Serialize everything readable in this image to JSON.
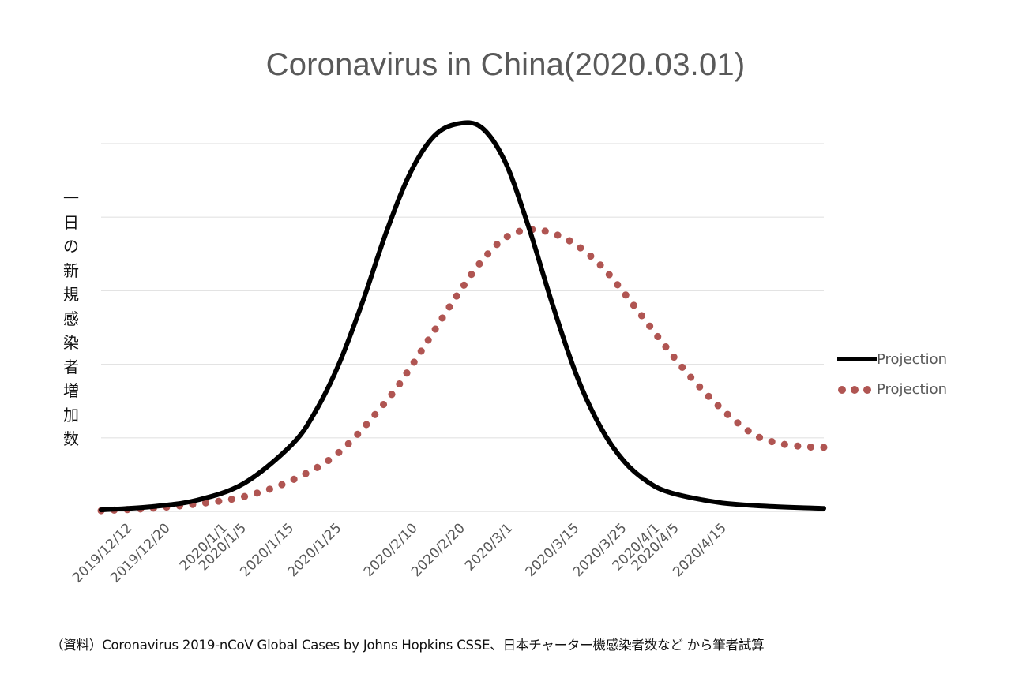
{
  "chart_data": {
    "type": "line",
    "title": "Coronavirus in China(2020.03.01)",
    "xlabel": "",
    "ylabel": "一日の新規感染者増加数",
    "y_units_note": "",
    "x_start_date": "2019/12/12",
    "x_range_days": [
      0,
      152
    ],
    "ylim": [
      0,
      5
    ],
    "ygrid": [
      0,
      1,
      2,
      3,
      4,
      5
    ],
    "grid": true,
    "legend_position": "right",
    "x_tick_labels": [
      {
        "label": "2019/12/12",
        "day": 0
      },
      {
        "label": "2019/12/20",
        "day": 8
      },
      {
        "label": "2020/1/1",
        "day": 20
      },
      {
        "label": "2020/1/5",
        "day": 24
      },
      {
        "label": "2020/1/15",
        "day": 34
      },
      {
        "label": "2020/1/25",
        "day": 44
      },
      {
        "label": "2020/2/10",
        "day": 60
      },
      {
        "label": "2020/2/20",
        "day": 70
      },
      {
        "label": "2020/3/1",
        "day": 80
      },
      {
        "label": "2020/3/15",
        "day": 94
      },
      {
        "label": "2020/3/25",
        "day": 104
      },
      {
        "label": "2020/4/1",
        "day": 111
      },
      {
        "label": "2020/4/5",
        "day": 115
      },
      {
        "label": "2020/4/15",
        "day": 125
      }
    ],
    "series": [
      {
        "name": "Projection",
        "style": "solid",
        "color": "#000000",
        "x": [
          0,
          10,
          20,
          30,
          40,
          45,
          50,
          55,
          60,
          65,
          70,
          75,
          80,
          85,
          90,
          95,
          100,
          105,
          110,
          115,
          120,
          130,
          140,
          152
        ],
        "y": [
          0.02,
          0.06,
          0.15,
          0.38,
          0.9,
          1.35,
          2.0,
          2.85,
          3.8,
          4.6,
          5.1,
          5.27,
          5.22,
          4.75,
          3.85,
          2.8,
          1.85,
          1.15,
          0.68,
          0.4,
          0.25,
          0.12,
          0.07,
          0.04
        ]
      },
      {
        "name": "Projection",
        "style": "dotted",
        "color": "#b05552",
        "x": [
          0,
          10,
          20,
          30,
          40,
          50,
          60,
          65,
          70,
          75,
          80,
          85,
          90,
          95,
          100,
          105,
          109,
          113,
          118,
          123,
          128,
          133,
          138,
          143,
          148,
          152
        ],
        "y": [
          0.01,
          0.04,
          0.1,
          0.2,
          0.42,
          0.8,
          1.5,
          1.95,
          2.45,
          2.95,
          3.4,
          3.72,
          3.83,
          3.78,
          3.62,
          3.35,
          3.05,
          2.72,
          2.3,
          1.9,
          1.55,
          1.25,
          1.02,
          0.92,
          0.88,
          0.87
        ]
      }
    ]
  },
  "legend": [
    {
      "label": "Projection",
      "style": "solid",
      "color": "#000000"
    },
    {
      "label": "Projection",
      "style": "dotted",
      "color": "#b05552"
    }
  ],
  "ylabel_chars": [
    "一",
    "日",
    "の",
    "新",
    "規",
    "感",
    "染",
    "者",
    "増",
    "加",
    "数"
  ],
  "source_note": "（資料）Coronavirus 2019-nCoV Global Cases by Johns Hopkins CSSE、日本チャーター機感染者数など から筆者試算",
  "colors": {
    "grid": "#e3e3e3",
    "title": "#595959",
    "ticks": "#595959"
  }
}
